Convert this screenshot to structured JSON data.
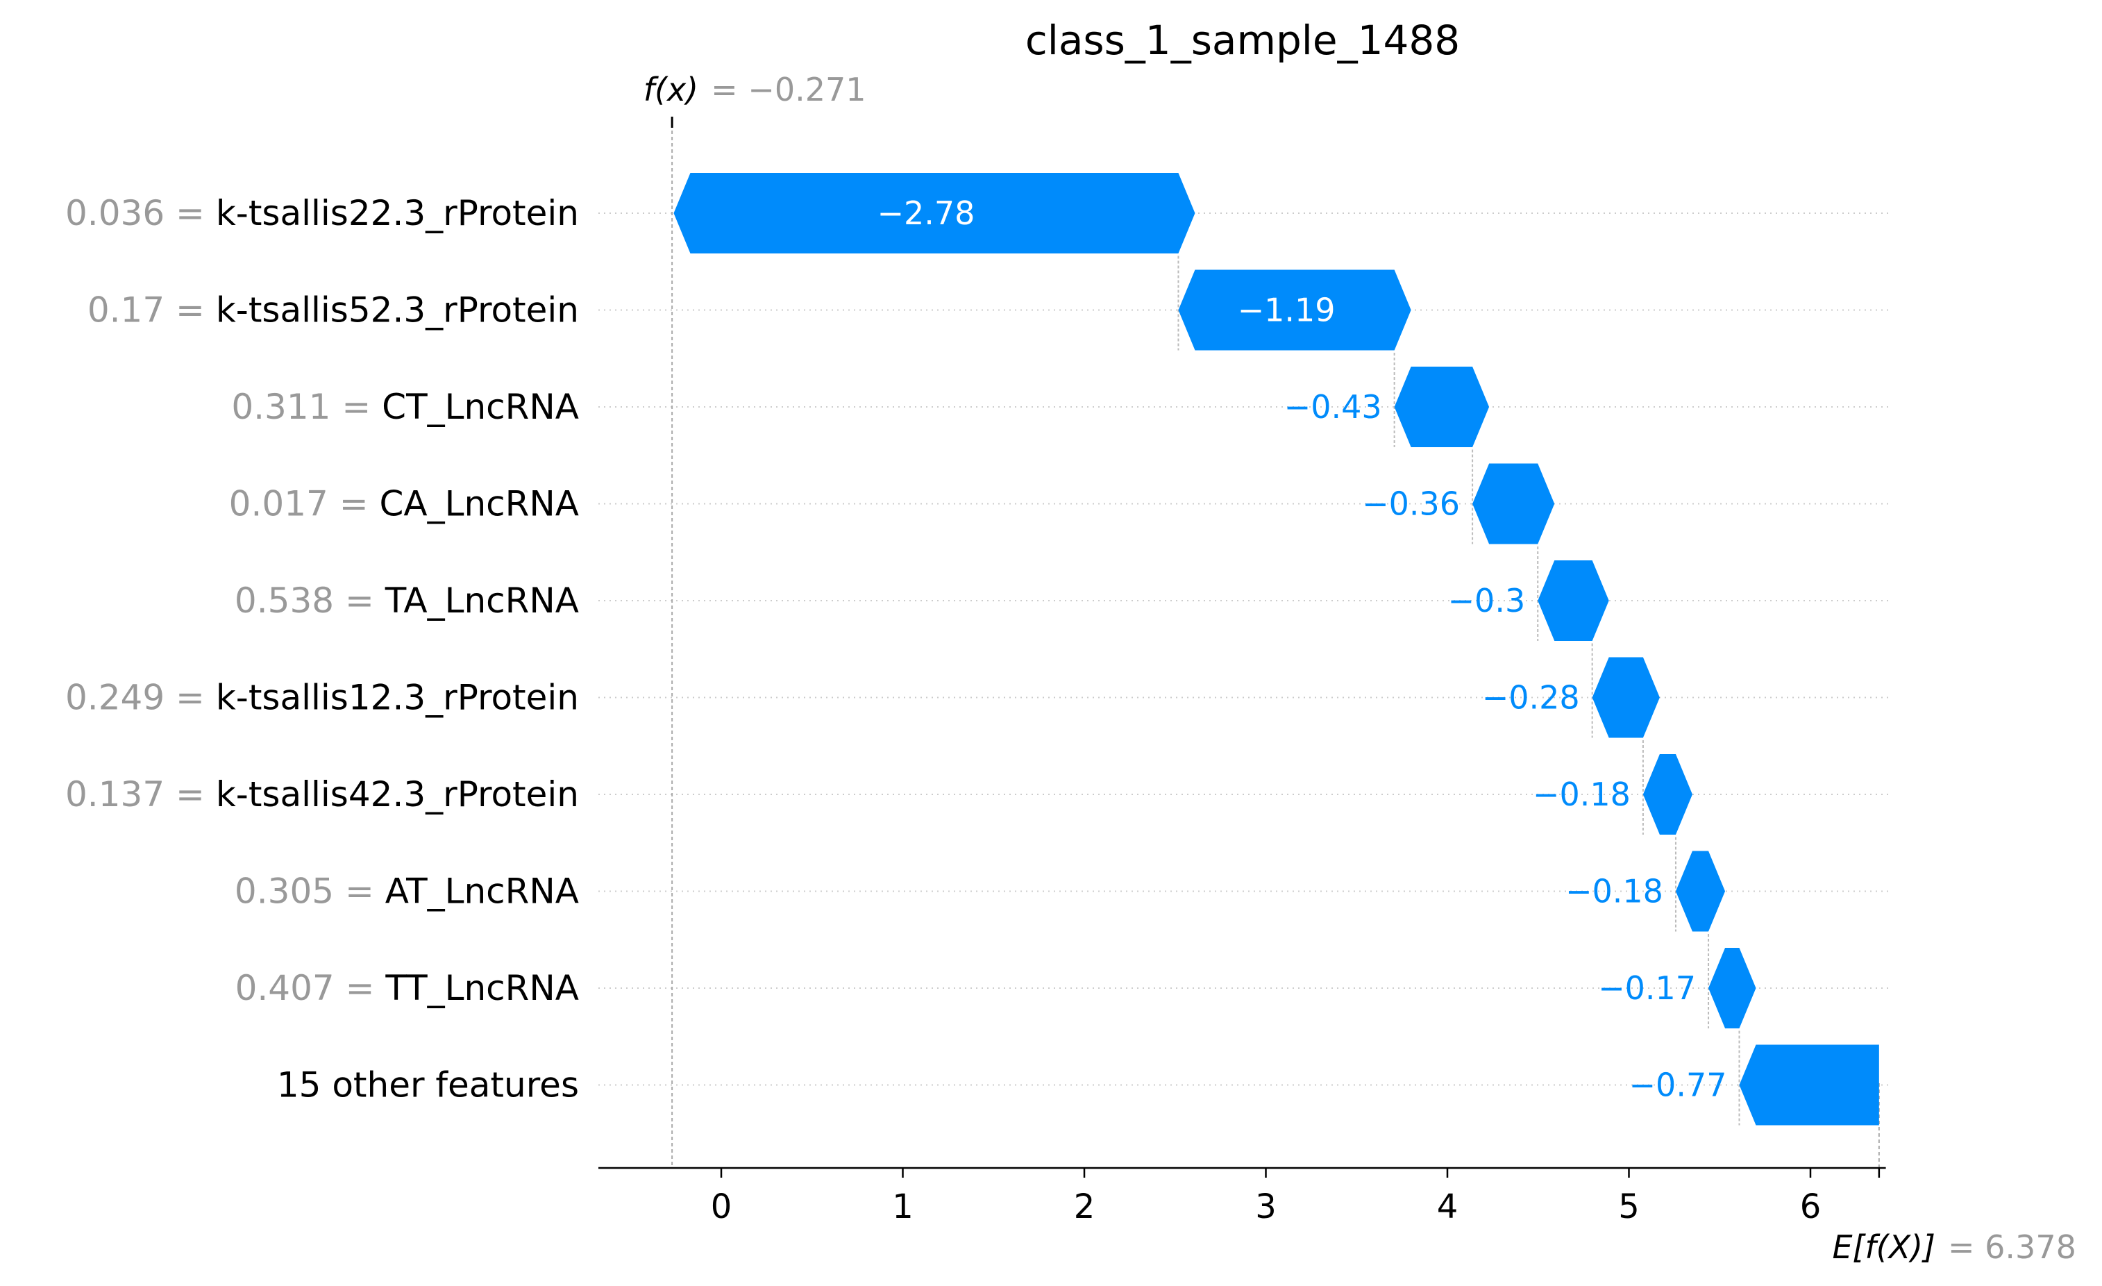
{
  "chart_data": {
    "type": "waterfall",
    "title": "class_1_sample_1488",
    "base_value": 6.378,
    "output_value": -0.271,
    "fx_label": "f(x)",
    "fx_value_text": "= −0.271",
    "efx_label": "E[f(X)]",
    "efx_value_text": "= 6.378",
    "xlim": [
      -0.68,
      6.4
    ],
    "xticks": [
      0,
      1,
      2,
      3,
      4,
      5,
      6
    ],
    "features": [
      {
        "value": "0.036",
        "name": "k-tsallis22.3_rProtein",
        "contribution": -2.78,
        "label": "−2.78"
      },
      {
        "value": "0.17",
        "name": "k-tsallis52.3_rProtein",
        "contribution": -1.19,
        "label": "−1.19"
      },
      {
        "value": "0.311",
        "name": "CT_LncRNA",
        "contribution": -0.43,
        "label": "−0.43"
      },
      {
        "value": "0.017",
        "name": "CA_LncRNA",
        "contribution": -0.36,
        "label": "−0.36"
      },
      {
        "value": "0.538",
        "name": "TA_LncRNA",
        "contribution": -0.3,
        "label": "−0.3"
      },
      {
        "value": "0.249",
        "name": "k-tsallis12.3_rProtein",
        "contribution": -0.28,
        "label": "−0.28"
      },
      {
        "value": "0.137",
        "name": "k-tsallis42.3_rProtein",
        "contribution": -0.18,
        "label": "−0.18"
      },
      {
        "value": "0.305",
        "name": "AT_LncRNA",
        "contribution": -0.18,
        "label": "−0.18"
      },
      {
        "value": "0.407",
        "name": "TT_LncRNA",
        "contribution": -0.17,
        "label": "−0.17"
      },
      {
        "value": "",
        "name": "15 other features",
        "contribution": -0.77,
        "label": "−0.77"
      }
    ],
    "colors": {
      "negative": "#008bfb",
      "positive": "#ff0051",
      "grid": "#cccccc",
      "muted": "#999999"
    }
  }
}
